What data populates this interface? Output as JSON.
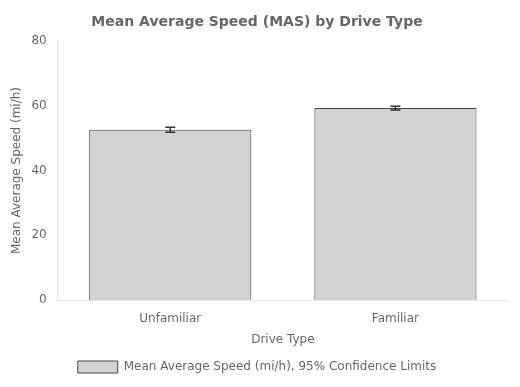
{
  "chart_data": {
    "type": "bar",
    "title": "Mean Average Speed (MAS) by Drive Type",
    "xlabel": "Drive Type",
    "ylabel": "Mean Average Speed (mi/h)",
    "categories": [
      "Unfamiliar",
      "Familiar"
    ],
    "series": [
      {
        "name": "Mean Average Speed (mi/h), 95% Confidence Limits",
        "color": "#d3d3d3",
        "values": [
          52.56,
          59.25
        ],
        "error": [
          0.8,
          0.6
        ]
      }
    ],
    "ylim": [
      0,
      80
    ],
    "yticks": [
      0,
      20,
      40,
      60,
      80
    ],
    "grid": false,
    "legend": "bottom"
  }
}
